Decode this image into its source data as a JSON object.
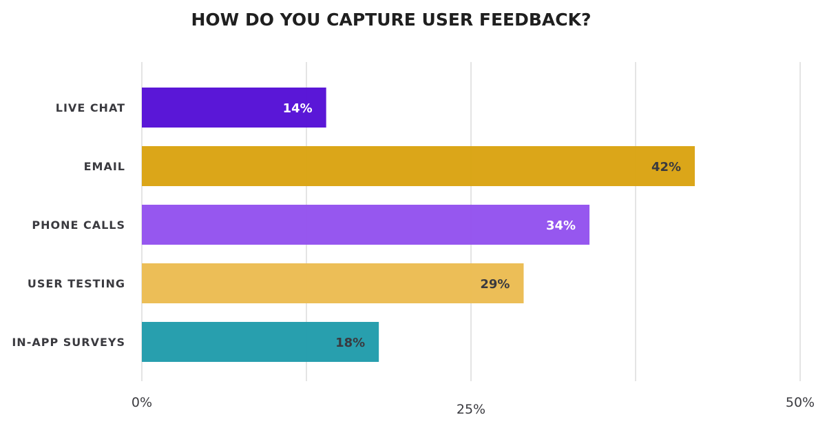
{
  "chart_data": {
    "type": "bar",
    "orientation": "horizontal",
    "title": "HOW DO YOU CAPTURE USER FEEDBACK?",
    "xlabel": "",
    "ylabel": "",
    "categories": [
      "LIVE CHAT",
      "EMAIL",
      "PHONE CALLS",
      "USER TESTING",
      "IN-APP SURVEYS"
    ],
    "values": [
      14,
      42,
      34,
      29,
      18
    ],
    "value_labels": [
      "14%",
      "42%",
      "34%",
      "29%",
      "18%"
    ],
    "colors": [
      "#5510d6",
      "#daa312",
      "#9352ee",
      "#ebbc52",
      "#219cab"
    ],
    "label_colors": [
      "#ffffff",
      "#3a3a3f",
      "#ffffff",
      "#3a3a3f",
      "#3a3a3f"
    ],
    "xlim": [
      0,
      50
    ],
    "x_ticks": [
      0,
      25,
      50
    ],
    "x_tick_labels": [
      "0%",
      "25%",
      "50%"
    ],
    "gridlines": [
      0,
      12.5,
      25,
      37.5,
      50
    ],
    "grid": true,
    "legend": "none"
  }
}
